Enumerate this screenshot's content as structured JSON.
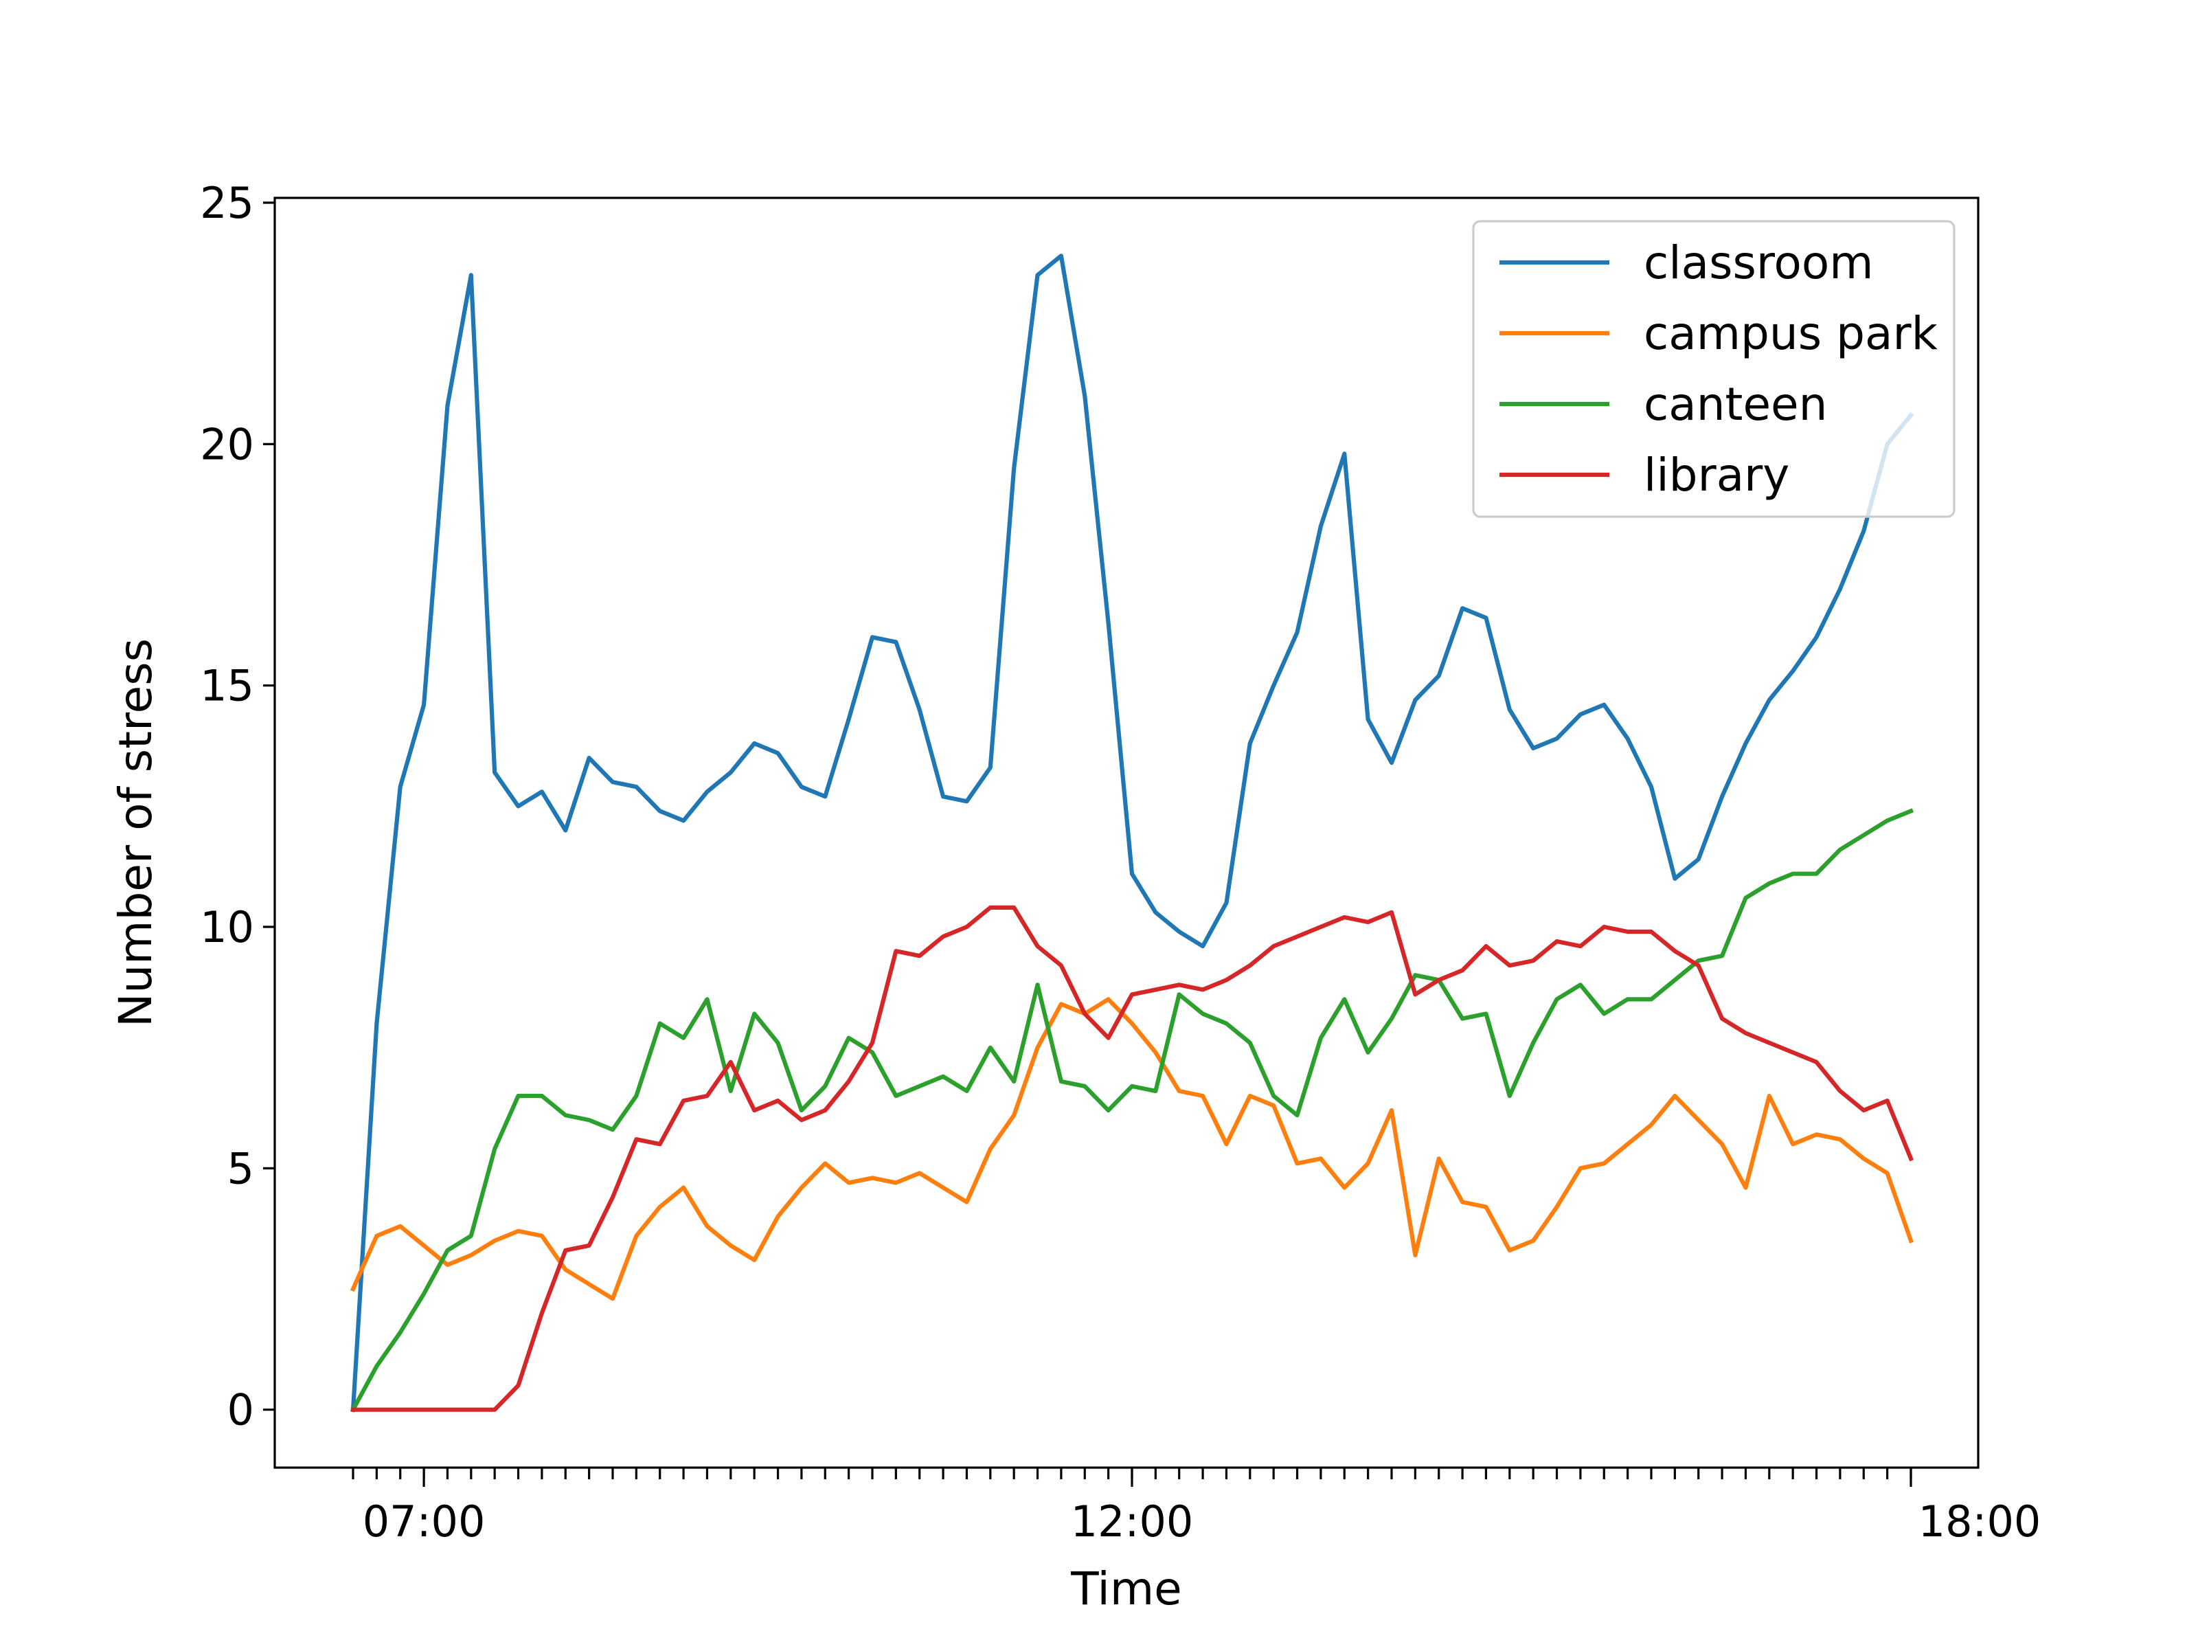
{
  "chart_data": {
    "type": "line",
    "xlabel": "Time",
    "ylabel": "Number of stress",
    "ylim": [
      -1.2,
      25.1
    ],
    "x_tick_labels": [
      "07:00",
      "12:00",
      "18:00"
    ],
    "y_tick_labels": [
      "0",
      "5",
      "10",
      "15",
      "20",
      "25"
    ],
    "y_ticks": [
      0,
      5,
      10,
      15,
      20,
      25
    ],
    "x_start": "06:30",
    "x_interval_minutes": 10,
    "legend_position": "top-right",
    "grid": false,
    "series": [
      {
        "name": "classroom",
        "color": "#1f77b4",
        "values": [
          0,
          8,
          12.9,
          14.6,
          20.8,
          23.5,
          13.2,
          12.5,
          12.8,
          12.0,
          13.5,
          13.0,
          12.9,
          12.4,
          12.2,
          12.8,
          13.2,
          13.8,
          13.6,
          12.9,
          12.7,
          14.3,
          16.0,
          15.9,
          14.5,
          12.7,
          12.6,
          13.3,
          19.5,
          23.5,
          23.9,
          21.0,
          16.3,
          11.1,
          10.3,
          9.9,
          9.6,
          10.5,
          13.8,
          15.0,
          16.1,
          18.3,
          19.8,
          14.3,
          13.4,
          14.7,
          15.2,
          16.6,
          16.4,
          14.5,
          13.7,
          13.9,
          14.4,
          14.6,
          13.9,
          12.9,
          11.0,
          11.4,
          12.7,
          13.8,
          14.7,
          15.3,
          16.0,
          17.0,
          18.2,
          20.0,
          20.6
        ]
      },
      {
        "name": "campus park",
        "color": "#ff7f0e",
        "values": [
          2.5,
          3.6,
          3.8,
          3.4,
          3.0,
          3.2,
          3.5,
          3.7,
          3.6,
          2.9,
          2.6,
          2.3,
          3.6,
          4.2,
          4.6,
          3.8,
          3.4,
          3.1,
          4.0,
          4.6,
          5.1,
          4.7,
          4.8,
          4.7,
          4.9,
          4.6,
          4.3,
          5.4,
          6.1,
          7.5,
          8.4,
          8.2,
          8.5,
          8.0,
          7.4,
          6.6,
          6.5,
          5.5,
          6.5,
          6.3,
          5.1,
          5.2,
          4.6,
          5.1,
          6.2,
          3.2,
          5.2,
          4.3,
          4.2,
          3.3,
          3.5,
          4.2,
          5.0,
          5.1,
          5.5,
          5.9,
          6.5,
          6.0,
          5.5,
          4.6,
          6.5,
          5.5,
          5.7,
          5.6,
          5.2,
          4.9,
          3.5
        ]
      },
      {
        "name": "canteen",
        "color": "#2ca02c",
        "values": [
          0,
          0.9,
          1.6,
          2.4,
          3.3,
          3.6,
          5.4,
          6.5,
          6.5,
          6.1,
          6.0,
          5.8,
          6.5,
          8.0,
          7.7,
          8.5,
          6.6,
          8.2,
          7.6,
          6.2,
          6.7,
          7.7,
          7.4,
          6.5,
          6.7,
          6.9,
          6.6,
          7.5,
          6.8,
          8.8,
          6.8,
          6.7,
          6.2,
          6.7,
          6.6,
          8.6,
          8.2,
          8.0,
          7.6,
          6.5,
          6.1,
          7.7,
          8.5,
          7.4,
          8.1,
          9.0,
          8.9,
          8.1,
          8.2,
          6.5,
          7.6,
          8.5,
          8.8,
          8.2,
          8.5,
          8.5,
          8.9,
          9.3,
          9.4,
          10.6,
          10.9,
          11.1,
          11.1,
          11.6,
          11.9,
          12.2,
          12.4
        ]
      },
      {
        "name": "library",
        "color": "#d62728",
        "values": [
          0,
          0,
          0,
          0,
          0,
          0,
          0,
          0.5,
          2.0,
          3.3,
          3.4,
          4.4,
          5.6,
          5.5,
          6.4,
          6.5,
          7.2,
          6.2,
          6.4,
          6.0,
          6.2,
          6.8,
          7.6,
          9.5,
          9.4,
          9.8,
          10.0,
          10.4,
          10.4,
          9.6,
          9.2,
          8.2,
          7.7,
          8.6,
          8.7,
          8.8,
          8.7,
          8.9,
          9.2,
          9.6,
          9.8,
          10.0,
          10.2,
          10.1,
          10.3,
          8.6,
          8.9,
          9.1,
          9.6,
          9.2,
          9.3,
          9.7,
          9.6,
          10.0,
          9.9,
          9.9,
          9.5,
          9.2,
          8.1,
          7.8,
          7.6,
          7.4,
          7.2,
          6.6,
          6.2,
          6.4,
          5.2
        ]
      }
    ]
  }
}
